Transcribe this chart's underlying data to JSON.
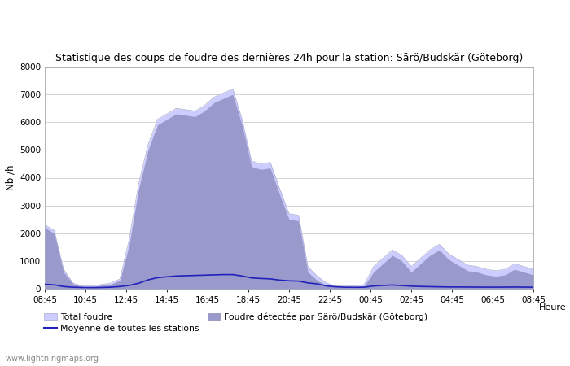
{
  "title": "Statistique des coups de foudre des dernières 24h pour la station: Särö/Budskär (Göteborg)",
  "ylabel": "Nb /h",
  "xlabel": "Heure",
  "ylim": [
    0,
    8000
  ],
  "yticks": [
    0,
    1000,
    2000,
    3000,
    4000,
    5000,
    6000,
    7000,
    8000
  ],
  "background_color": "#ffffff",
  "plot_bg_color": "#ffffff",
  "watermark": "www.lightningmaps.org",
  "x_labels": [
    "08:45",
    "10:45",
    "12:45",
    "14:45",
    "16:45",
    "18:45",
    "20:45",
    "22:45",
    "00:45",
    "02:45",
    "04:45",
    "06:45",
    "08:45"
  ],
  "total_foudre_color": "#ccccff",
  "foudre_detectee_color": "#9999cc",
  "moyenne_color": "#2222bb",
  "legend_labels": [
    "Total foudre",
    "Moyenne de toutes les stations",
    "Foudre détectée par Särö/Budskär (Göteborg)"
  ],
  "total_foudre": [
    2300,
    2100,
    700,
    200,
    100,
    100,
    150,
    200,
    350,
    1800,
    3800,
    5200,
    6100,
    6300,
    6500,
    6450,
    6400,
    6600,
    6900,
    7050,
    7200,
    6100,
    4600,
    4500,
    4550,
    3600,
    2700,
    2650,
    800,
    450,
    200,
    100,
    100,
    100,
    150,
    800,
    1100,
    1400,
    1200,
    800,
    1100,
    1400,
    1600,
    1250,
    1050,
    850,
    800,
    700,
    650,
    700,
    900,
    800,
    700
  ],
  "foudre_detectee": [
    2200,
    2000,
    600,
    180,
    80,
    80,
    120,
    160,
    300,
    1600,
    3600,
    5000,
    5900,
    6100,
    6300,
    6250,
    6200,
    6400,
    6700,
    6850,
    7000,
    5900,
    4400,
    4300,
    4350,
    3400,
    2500,
    2450,
    600,
    300,
    120,
    70,
    70,
    70,
    100,
    600,
    900,
    1200,
    1000,
    600,
    900,
    1200,
    1400,
    1050,
    850,
    650,
    600,
    500,
    450,
    500,
    700,
    600,
    500
  ],
  "moyenne": [
    160,
    140,
    80,
    55,
    45,
    42,
    45,
    55,
    80,
    120,
    200,
    320,
    400,
    430,
    460,
    470,
    480,
    490,
    500,
    510,
    510,
    460,
    390,
    370,
    355,
    310,
    285,
    275,
    210,
    175,
    100,
    70,
    55,
    52,
    55,
    100,
    120,
    135,
    115,
    95,
    82,
    75,
    68,
    63,
    62,
    60,
    58,
    56,
    56,
    58,
    62,
    57,
    55
  ]
}
